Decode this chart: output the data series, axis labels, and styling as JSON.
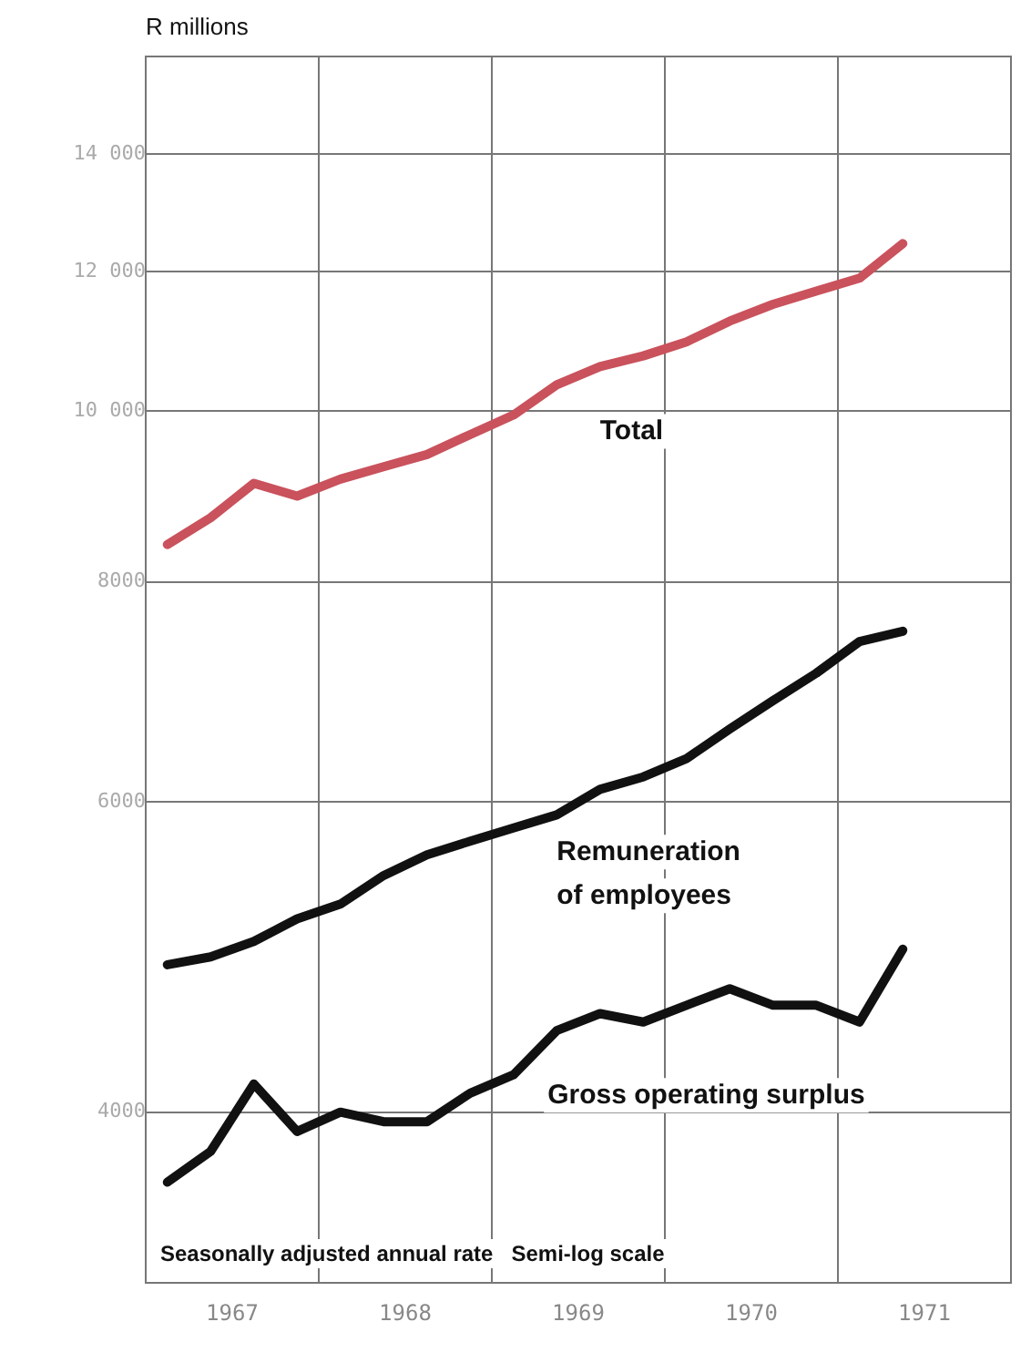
{
  "chart_data": {
    "type": "line",
    "ylabel": "R millions",
    "x": [
      1967.125,
      1967.375,
      1967.625,
      1967.875,
      1968.125,
      1968.375,
      1968.625,
      1968.875,
      1969.125,
      1969.375,
      1969.625,
      1969.875,
      1970.125,
      1970.375,
      1970.625,
      1970.875,
      1971.125,
      1971.375
    ],
    "series": [
      {
        "name": "Total",
        "color": "#c9525c",
        "values": [
          8400,
          8700,
          9100,
          8950,
          9150,
          9300,
          9450,
          9700,
          9950,
          10350,
          10600,
          10750,
          10950,
          11250,
          11500,
          11700,
          11900,
          12450
        ]
      },
      {
        "name": "Remuneration of employees",
        "color": "#111111",
        "values": [
          4850,
          4900,
          5000,
          5150,
          5250,
          5450,
          5600,
          5700,
          5800,
          5900,
          6100,
          6200,
          6350,
          6600,
          6850,
          7100,
          7400,
          7500
        ]
      },
      {
        "name": "Gross operating surplus",
        "color": "#111111",
        "values": [
          3650,
          3800,
          4150,
          3900,
          4000,
          3950,
          3950,
          4100,
          4200,
          4450,
          4550,
          4500,
          4600,
          4700,
          4600,
          4600,
          4500,
          4950
        ]
      }
    ],
    "log": "y",
    "xlim": [
      1967,
      1972
    ],
    "ylim": [
      3200,
      15900
    ],
    "xticks": [
      {
        "value": 1967,
        "label": null
      },
      {
        "value": 1967.5,
        "label": "1967"
      },
      {
        "value": 1968,
        "label": null
      },
      {
        "value": 1968.5,
        "label": "1968"
      },
      {
        "value": 1969,
        "label": null
      },
      {
        "value": 1969.5,
        "label": "1969"
      },
      {
        "value": 1970,
        "label": null
      },
      {
        "value": 1970.5,
        "label": "1970"
      },
      {
        "value": 1971,
        "label": null
      },
      {
        "value": 1971.5,
        "label": "1971"
      },
      {
        "value": 1972,
        "label": null
      }
    ],
    "yticks": [
      4000,
      6000,
      8000,
      {
        "value": 10000,
        "label": "10 000"
      },
      {
        "value": 12000,
        "label": "12 000"
      },
      {
        "value": 14000,
        "label": "14 000"
      }
    ],
    "grid": true,
    "legend": false,
    "marker": "none",
    "line_style": "solid",
    "annotations": [
      "Seasonally adjusted annual rate   Semi-log scale"
    ]
  }
}
